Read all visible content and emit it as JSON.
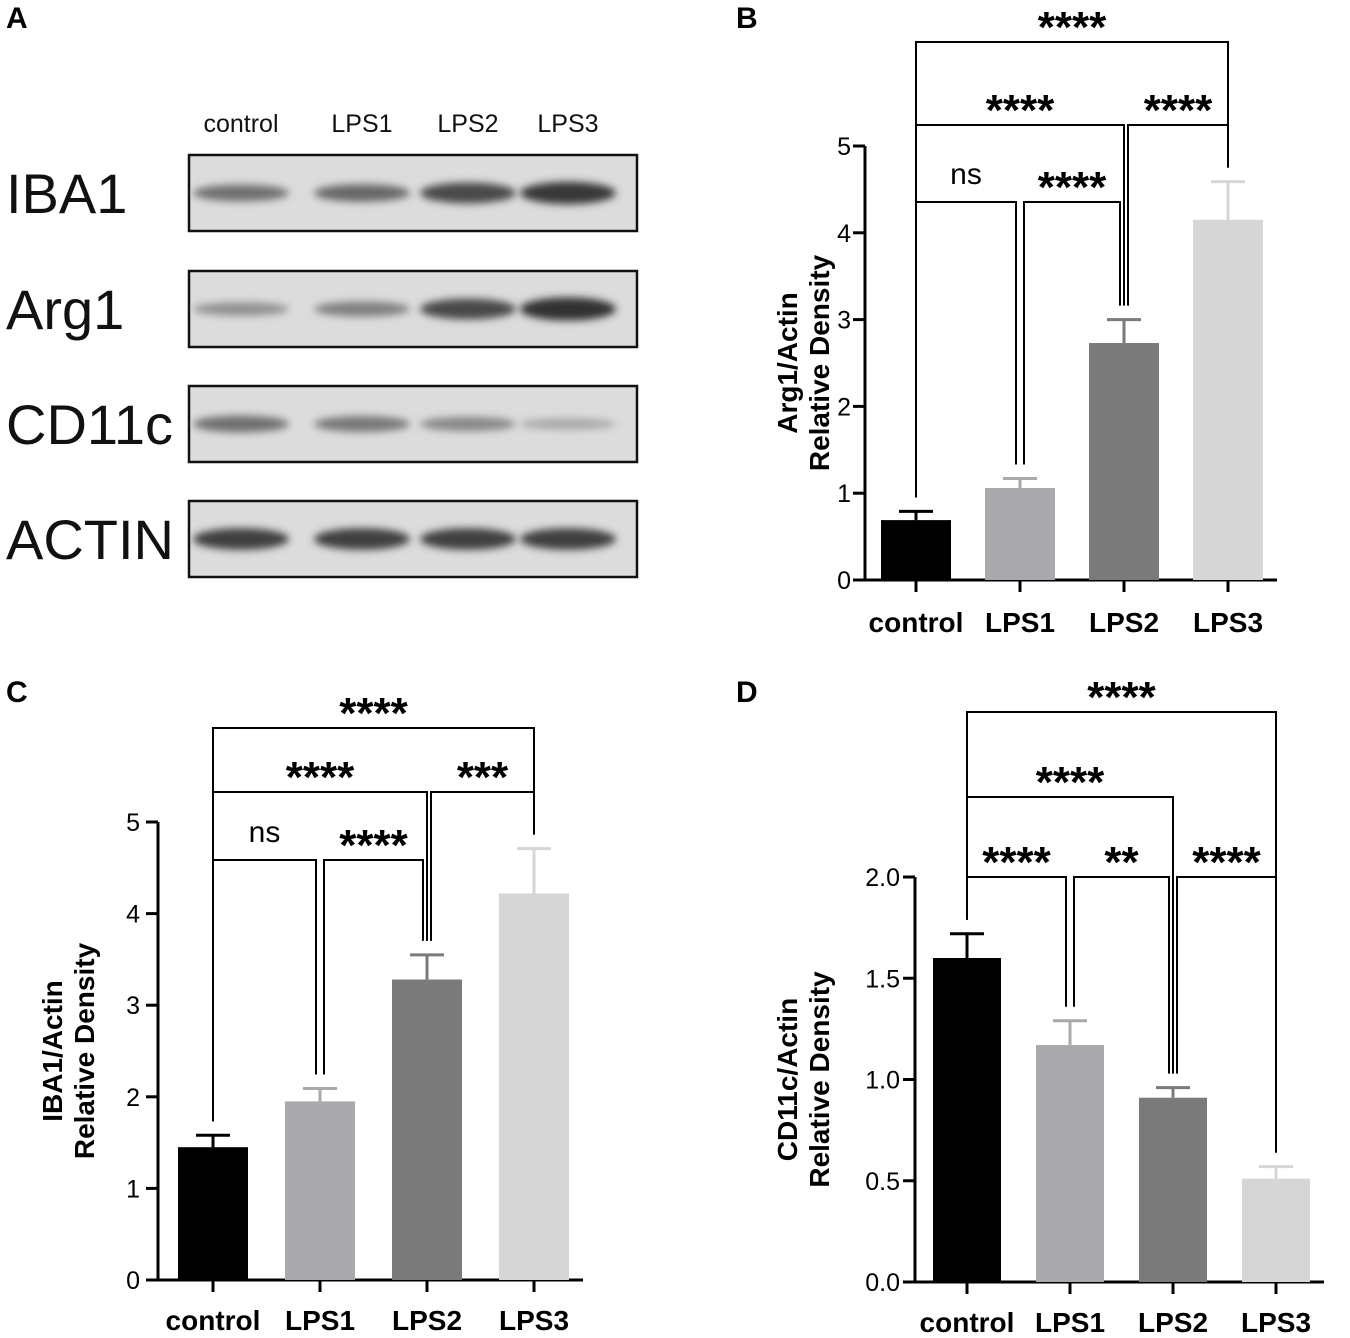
{
  "panels": {
    "A": {
      "letter": "A"
    },
    "B": {
      "letter": "B"
    },
    "C": {
      "letter": "C"
    },
    "D": {
      "letter": "D"
    }
  },
  "western_blot": {
    "lanes": [
      "control",
      "LPS1",
      "LPS2",
      "LPS3"
    ],
    "rows": [
      {
        "label": "IBA1",
        "band_intensity": [
          0.55,
          0.6,
          0.8,
          0.9
        ]
      },
      {
        "label": "Arg1",
        "band_intensity": [
          0.35,
          0.45,
          0.8,
          0.95
        ]
      },
      {
        "label": "CD11c",
        "band_intensity": [
          0.55,
          0.5,
          0.4,
          0.2
        ]
      },
      {
        "label": "ACTIN",
        "band_intensity": [
          0.85,
          0.85,
          0.85,
          0.85
        ]
      }
    ]
  },
  "chart_data": [
    {
      "panel": "B",
      "type": "bar",
      "categories": [
        "control",
        "LPS1",
        "LPS2",
        "LPS3"
      ],
      "values": [
        0.69,
        1.06,
        2.73,
        4.15
      ],
      "errors": [
        0.1,
        0.11,
        0.27,
        0.44
      ],
      "colors": [
        "#000000",
        "#a8a8ad",
        "#7a7a7a",
        "#d6d6d6"
      ],
      "ylabel": [
        "Arg1/Actin",
        "Relative Density"
      ],
      "ylim": [
        0,
        5
      ],
      "yticks": [
        0,
        1,
        2,
        3,
        4,
        5
      ],
      "significance": [
        {
          "from": 0,
          "to": 1,
          "label": "ns"
        },
        {
          "from": 1,
          "to": 2,
          "label": "****"
        },
        {
          "from": 0,
          "to": 2,
          "label": "****"
        },
        {
          "from": 2,
          "to": 3,
          "label": "****"
        },
        {
          "from": 0,
          "to": 3,
          "label": "****"
        }
      ]
    },
    {
      "panel": "C",
      "type": "bar",
      "categories": [
        "control",
        "LPS1",
        "LPS2",
        "LPS3"
      ],
      "values": [
        1.45,
        1.95,
        3.28,
        4.22
      ],
      "errors": [
        0.13,
        0.14,
        0.27,
        0.49
      ],
      "colors": [
        "#000000",
        "#a8a8ad",
        "#7a7a7a",
        "#d6d6d6"
      ],
      "ylabel": [
        "IBA1/Actin",
        "Relative Density"
      ],
      "ylim": [
        0,
        5
      ],
      "yticks": [
        0,
        1,
        2,
        3,
        4,
        5
      ],
      "significance": [
        {
          "from": 0,
          "to": 1,
          "label": "ns"
        },
        {
          "from": 1,
          "to": 2,
          "label": "****"
        },
        {
          "from": 0,
          "to": 2,
          "label": "****"
        },
        {
          "from": 2,
          "to": 3,
          "label": "***"
        },
        {
          "from": 0,
          "to": 3,
          "label": "****"
        }
      ]
    },
    {
      "panel": "D",
      "type": "bar",
      "categories": [
        "control",
        "LPS1",
        "LPS2",
        "LPS3"
      ],
      "values": [
        1.6,
        1.17,
        0.91,
        0.51
      ],
      "errors": [
        0.12,
        0.12,
        0.05,
        0.06
      ],
      "colors": [
        "#000000",
        "#a8a8ad",
        "#7a7a7a",
        "#d6d6d6"
      ],
      "ylabel": [
        "CD11c/Actin",
        "Relative Density"
      ],
      "ylim": [
        0,
        2
      ],
      "yticks": [
        "0.0",
        "0.5",
        "1.0",
        "1.5",
        "2.0"
      ],
      "significance": [
        {
          "from": 0,
          "to": 1,
          "label": "****"
        },
        {
          "from": 1,
          "to": 2,
          "label": "**"
        },
        {
          "from": 2,
          "to": 3,
          "label": "****"
        },
        {
          "from": 0,
          "to": 2,
          "label": "****"
        },
        {
          "from": 0,
          "to": 3,
          "label": "****"
        }
      ]
    }
  ]
}
